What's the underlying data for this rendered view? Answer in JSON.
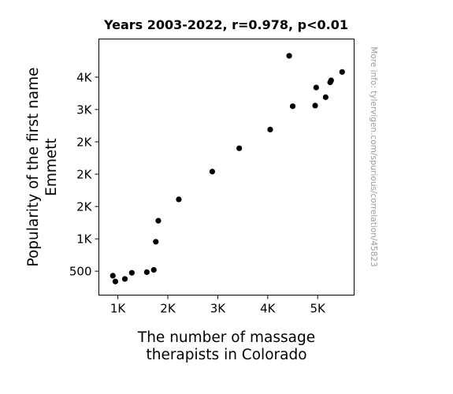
{
  "chart_data": {
    "type": "scatter",
    "title": "Years 2003-2022, r=0.978, p<0.01",
    "xlabel_lines": [
      "The number of massage",
      "therapists in Colorado"
    ],
    "ylabel_lines": [
      "Popularity of the first name",
      "Emmett"
    ],
    "watermark": "More info: tylervigen.com/spurious/correlation/45823",
    "xlim": [
      620,
      5730
    ],
    "ylim": [
      130,
      4090
    ],
    "x_ticks": [
      {
        "value": 1000,
        "label": "1K"
      },
      {
        "value": 2000,
        "label": "2K"
      },
      {
        "value": 3000,
        "label": "3K"
      },
      {
        "value": 4000,
        "label": "4K"
      },
      {
        "value": 5000,
        "label": "5K"
      }
    ],
    "y_ticks": [
      {
        "value": 500,
        "label": "500"
      },
      {
        "value": 1000,
        "label": "1K"
      },
      {
        "value": 1500,
        "label": "2K"
      },
      {
        "value": 2000,
        "label": "2K"
      },
      {
        "value": 2500,
        "label": "2K"
      },
      {
        "value": 3000,
        "label": "3K"
      },
      {
        "value": 3500,
        "label": "4K"
      }
    ],
    "points": [
      {
        "x": 900,
        "y": 430
      },
      {
        "x": 950,
        "y": 340
      },
      {
        "x": 1140,
        "y": 380
      },
      {
        "x": 1280,
        "y": 475
      },
      {
        "x": 1580,
        "y": 485
      },
      {
        "x": 1720,
        "y": 520
      },
      {
        "x": 1760,
        "y": 955
      },
      {
        "x": 1810,
        "y": 1280
      },
      {
        "x": 2220,
        "y": 1610
      },
      {
        "x": 2890,
        "y": 2040
      },
      {
        "x": 3430,
        "y": 2400
      },
      {
        "x": 4050,
        "y": 2690
      },
      {
        "x": 4430,
        "y": 3830
      },
      {
        "x": 4500,
        "y": 3050
      },
      {
        "x": 4950,
        "y": 3060
      },
      {
        "x": 4970,
        "y": 3340
      },
      {
        "x": 5160,
        "y": 3190
      },
      {
        "x": 5250,
        "y": 3420
      },
      {
        "x": 5270,
        "y": 3450
      },
      {
        "x": 5490,
        "y": 3580
      }
    ]
  }
}
